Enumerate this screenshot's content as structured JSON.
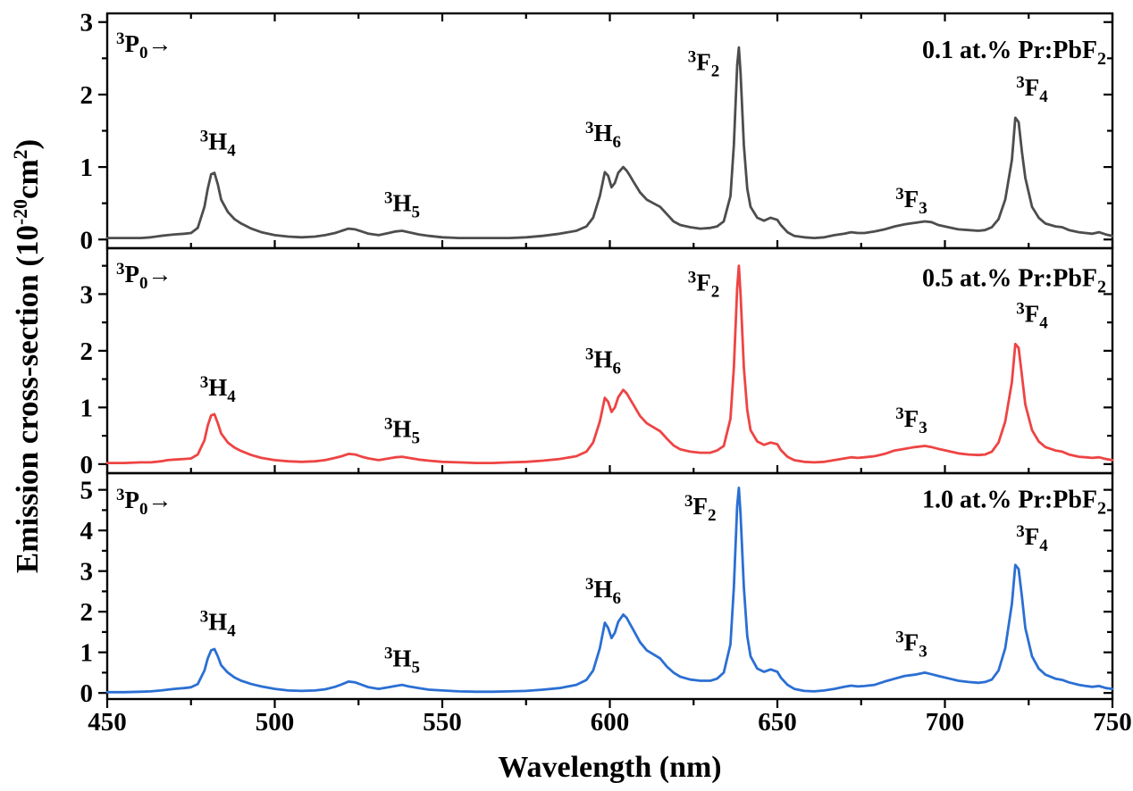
{
  "chart_data": {
    "type": "line",
    "xlabel": "Wavelength (nm)",
    "ylabel": "Emission cross-section (10^-20 cm^2)",
    "ylabel_parts": {
      "pre": "Emission cross-section (10",
      "sup": "-20",
      "mid": "cm",
      "sup2": "2",
      "post": ")"
    },
    "xlim": [
      450,
      750
    ],
    "x_ticks": [
      450,
      500,
      550,
      600,
      650,
      700,
      750
    ],
    "x_minor_step": 25,
    "grid": false,
    "legend_position": "none",
    "wavelengths": [
      450,
      455,
      460,
      463,
      466,
      468,
      470,
      473,
      475,
      477,
      479,
      480,
      481,
      482,
      483,
      484,
      486,
      488,
      490,
      493,
      496,
      500,
      504,
      508,
      512,
      515,
      518,
      520,
      522,
      524,
      526,
      528,
      531,
      534,
      536,
      538,
      540,
      543,
      546,
      550,
      555,
      560,
      565,
      570,
      575,
      580,
      585,
      590,
      593,
      595,
      597,
      598.5,
      599.5,
      600.5,
      601.5,
      602.5,
      604,
      605,
      606,
      607,
      609,
      611,
      613,
      615,
      617,
      619,
      621,
      624,
      627,
      630,
      632,
      634,
      636,
      637,
      638,
      638.5,
      639,
      640,
      641,
      642,
      644,
      646,
      648,
      650,
      651,
      653,
      655,
      658,
      661,
      664,
      667,
      670,
      672,
      674,
      676,
      679,
      682,
      685,
      688,
      691,
      694,
      696,
      698,
      701,
      704,
      707,
      710,
      712,
      714,
      716,
      718,
      720,
      721,
      722,
      723,
      724,
      726,
      728,
      730,
      733,
      735,
      737,
      740,
      742,
      744,
      746,
      748,
      750
    ],
    "panels": [
      {
        "name": "0.1 at.% Pr:PbF2",
        "label": {
          "text": "0.1 at.% Pr:PbF",
          "sub": "2",
          "y": 2.63
        },
        "color": "#4d4d4d",
        "y_ticks": [
          0,
          1,
          2,
          3
        ],
        "ylim": [
          -0.12,
          3.12
        ],
        "values": [
          0.02,
          0.02,
          0.02,
          0.03,
          0.05,
          0.06,
          0.07,
          0.08,
          0.09,
          0.16,
          0.45,
          0.7,
          0.9,
          0.92,
          0.76,
          0.55,
          0.38,
          0.28,
          0.22,
          0.15,
          0.1,
          0.06,
          0.04,
          0.03,
          0.04,
          0.06,
          0.09,
          0.12,
          0.15,
          0.14,
          0.11,
          0.08,
          0.06,
          0.09,
          0.11,
          0.12,
          0.1,
          0.07,
          0.05,
          0.03,
          0.02,
          0.02,
          0.02,
          0.02,
          0.03,
          0.05,
          0.08,
          0.12,
          0.18,
          0.3,
          0.6,
          0.93,
          0.88,
          0.72,
          0.78,
          0.92,
          1.0,
          0.95,
          0.88,
          0.8,
          0.65,
          0.55,
          0.5,
          0.45,
          0.35,
          0.25,
          0.2,
          0.17,
          0.15,
          0.16,
          0.18,
          0.25,
          0.6,
          1.3,
          2.4,
          2.65,
          2.3,
          1.3,
          0.7,
          0.45,
          0.3,
          0.26,
          0.3,
          0.27,
          0.2,
          0.1,
          0.05,
          0.03,
          0.02,
          0.03,
          0.06,
          0.08,
          0.1,
          0.09,
          0.09,
          0.11,
          0.14,
          0.18,
          0.21,
          0.23,
          0.25,
          0.24,
          0.2,
          0.17,
          0.14,
          0.13,
          0.12,
          0.13,
          0.17,
          0.28,
          0.55,
          1.1,
          1.68,
          1.62,
          1.2,
          0.85,
          0.45,
          0.3,
          0.22,
          0.18,
          0.17,
          0.13,
          0.1,
          0.09,
          0.08,
          0.1,
          0.07,
          0.05
        ],
        "annotations": [
          {
            "name": "transition-3P0",
            "sup": "3",
            "base": "P",
            "sub": "0",
            "suffix": "→",
            "x": 461,
            "y": 2.7
          },
          {
            "name": "peak-label-3H4",
            "sup": "3",
            "base": "H",
            "sub": "4",
            "suffix": "",
            "x": 483,
            "y": 1.35
          },
          {
            "name": "peak-label-3H5",
            "sup": "3",
            "base": "H",
            "sub": "5",
            "suffix": "",
            "x": 538,
            "y": 0.5
          },
          {
            "name": "peak-label-3H6",
            "sup": "3",
            "base": "H",
            "sub": "6",
            "suffix": "",
            "x": 598,
            "y": 1.47
          },
          {
            "name": "peak-label-3F2",
            "sup": "3",
            "base": "F",
            "sub": "2",
            "suffix": "",
            "x": 628,
            "y": 2.45
          },
          {
            "name": "peak-label-3F3",
            "sup": "3",
            "base": "F",
            "sub": "3",
            "suffix": "",
            "x": 690,
            "y": 0.56
          },
          {
            "name": "peak-label-3F4",
            "sup": "3",
            "base": "F",
            "sub": "4",
            "suffix": "",
            "x": 726,
            "y": 2.1
          }
        ]
      },
      {
        "name": "0.5 at.% Pr:PbF2",
        "label": {
          "text": "0.5 at.% Pr:PbF",
          "sub": "2",
          "y": 3.3
        },
        "color": "#ee4444",
        "y_ticks": [
          0,
          1,
          2,
          3
        ],
        "ylim": [
          -0.16,
          3.81
        ],
        "values": [
          0.02,
          0.02,
          0.03,
          0.03,
          0.05,
          0.07,
          0.08,
          0.09,
          0.1,
          0.17,
          0.42,
          0.68,
          0.86,
          0.88,
          0.72,
          0.54,
          0.38,
          0.29,
          0.23,
          0.16,
          0.11,
          0.07,
          0.05,
          0.04,
          0.05,
          0.07,
          0.11,
          0.14,
          0.18,
          0.17,
          0.13,
          0.1,
          0.07,
          0.1,
          0.12,
          0.13,
          0.11,
          0.08,
          0.06,
          0.04,
          0.03,
          0.02,
          0.02,
          0.03,
          0.04,
          0.06,
          0.09,
          0.14,
          0.22,
          0.38,
          0.75,
          1.17,
          1.1,
          0.92,
          1.0,
          1.18,
          1.31,
          1.25,
          1.15,
          1.05,
          0.85,
          0.72,
          0.65,
          0.58,
          0.45,
          0.33,
          0.26,
          0.22,
          0.2,
          0.2,
          0.24,
          0.32,
          0.8,
          1.7,
          3.1,
          3.5,
          3.0,
          1.7,
          0.95,
          0.6,
          0.4,
          0.34,
          0.38,
          0.35,
          0.25,
          0.13,
          0.07,
          0.04,
          0.03,
          0.04,
          0.07,
          0.1,
          0.12,
          0.11,
          0.12,
          0.14,
          0.18,
          0.24,
          0.27,
          0.3,
          0.32,
          0.3,
          0.27,
          0.23,
          0.19,
          0.17,
          0.16,
          0.17,
          0.22,
          0.38,
          0.75,
          1.45,
          2.12,
          2.05,
          1.55,
          1.05,
          0.6,
          0.4,
          0.3,
          0.24,
          0.22,
          0.17,
          0.13,
          0.12,
          0.11,
          0.12,
          0.09,
          0.07
        ],
        "annotations": [
          {
            "name": "transition-3P0",
            "sup": "3",
            "base": "P",
            "sub": "0",
            "suffix": "→",
            "x": 461,
            "y": 3.35
          },
          {
            "name": "peak-label-3H4",
            "sup": "3",
            "base": "H",
            "sub": "4",
            "suffix": "",
            "x": 483,
            "y": 1.35
          },
          {
            "name": "peak-label-3H5",
            "sup": "3",
            "base": "H",
            "sub": "5",
            "suffix": "",
            "x": 538,
            "y": 0.62
          },
          {
            "name": "peak-label-3H6",
            "sup": "3",
            "base": "H",
            "sub": "6",
            "suffix": "",
            "x": 598,
            "y": 1.85
          },
          {
            "name": "peak-label-3F2",
            "sup": "3",
            "base": "F",
            "sub": "2",
            "suffix": "",
            "x": 628,
            "y": 3.2
          },
          {
            "name": "peak-label-3F3",
            "sup": "3",
            "base": "F",
            "sub": "3",
            "suffix": "",
            "x": 690,
            "y": 0.8
          },
          {
            "name": "peak-label-3F4",
            "sup": "3",
            "base": "F",
            "sub": "4",
            "suffix": "",
            "x": 726,
            "y": 2.65
          }
        ]
      },
      {
        "name": "1.0 at.% Pr:PbF2",
        "label": {
          "text": "1.0 at.% Pr:PbF",
          "sub": "2",
          "y": 4.78
        },
        "color": "#2b6fd3",
        "y_ticks": [
          0,
          1,
          2,
          3,
          4,
          5
        ],
        "ylim": [
          -0.15,
          5.41
        ],
        "values": [
          0.02,
          0.02,
          0.03,
          0.04,
          0.06,
          0.08,
          0.1,
          0.12,
          0.14,
          0.22,
          0.55,
          0.85,
          1.05,
          1.08,
          0.9,
          0.68,
          0.5,
          0.38,
          0.3,
          0.22,
          0.16,
          0.1,
          0.06,
          0.05,
          0.06,
          0.09,
          0.15,
          0.21,
          0.28,
          0.26,
          0.2,
          0.14,
          0.1,
          0.14,
          0.17,
          0.2,
          0.16,
          0.12,
          0.08,
          0.06,
          0.04,
          0.03,
          0.03,
          0.04,
          0.05,
          0.08,
          0.12,
          0.2,
          0.32,
          0.55,
          1.1,
          1.73,
          1.6,
          1.35,
          1.48,
          1.75,
          1.93,
          1.85,
          1.7,
          1.55,
          1.25,
          1.05,
          0.95,
          0.85,
          0.65,
          0.5,
          0.4,
          0.33,
          0.3,
          0.3,
          0.35,
          0.5,
          1.2,
          2.6,
          4.6,
          5.05,
          4.4,
          2.6,
          1.4,
          0.9,
          0.6,
          0.52,
          0.58,
          0.52,
          0.38,
          0.2,
          0.1,
          0.05,
          0.04,
          0.06,
          0.1,
          0.15,
          0.18,
          0.16,
          0.17,
          0.2,
          0.28,
          0.35,
          0.42,
          0.45,
          0.5,
          0.46,
          0.42,
          0.36,
          0.3,
          0.27,
          0.25,
          0.27,
          0.33,
          0.55,
          1.1,
          2.2,
          3.15,
          3.05,
          2.35,
          1.6,
          0.9,
          0.6,
          0.45,
          0.35,
          0.32,
          0.26,
          0.2,
          0.17,
          0.15,
          0.17,
          0.12,
          0.1
        ],
        "annotations": [
          {
            "name": "transition-3P0",
            "sup": "3",
            "base": "P",
            "sub": "0",
            "suffix": "→",
            "x": 461,
            "y": 4.75
          },
          {
            "name": "peak-label-3H4",
            "sup": "3",
            "base": "H",
            "sub": "4",
            "suffix": "",
            "x": 483,
            "y": 1.75
          },
          {
            "name": "peak-label-3H5",
            "sup": "3",
            "base": "H",
            "sub": "5",
            "suffix": "",
            "x": 538,
            "y": 0.85
          },
          {
            "name": "peak-label-3H6",
            "sup": "3",
            "base": "H",
            "sub": "6",
            "suffix": "",
            "x": 598,
            "y": 2.55
          },
          {
            "name": "peak-label-3F2",
            "sup": "3",
            "base": "F",
            "sub": "2",
            "suffix": "",
            "x": 627,
            "y": 4.6
          },
          {
            "name": "peak-label-3F3",
            "sup": "3",
            "base": "F",
            "sub": "3",
            "suffix": "",
            "x": 690,
            "y": 1.25
          },
          {
            "name": "peak-label-3F4",
            "sup": "3",
            "base": "F",
            "sub": "4",
            "suffix": "",
            "x": 726,
            "y": 3.85
          }
        ]
      }
    ],
    "colors": {
      "panel1": "#4d4d4d",
      "panel2": "#ee4444",
      "panel3": "#2b6fd3",
      "axis": "#000000",
      "background": "#ffffff"
    }
  }
}
